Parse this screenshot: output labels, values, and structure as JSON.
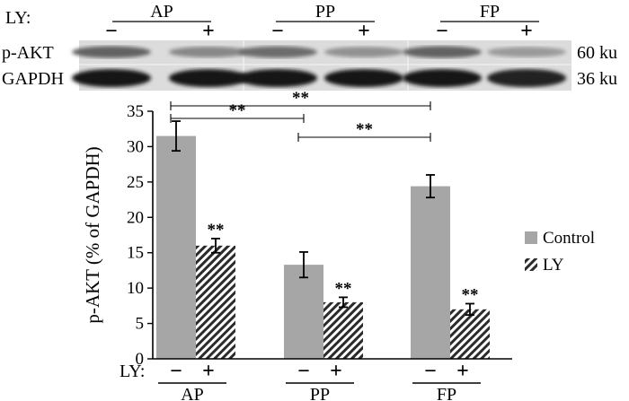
{
  "blot": {
    "row_label": "LY:",
    "groups": [
      "AP",
      "PP",
      "FP"
    ],
    "signs": [
      "−",
      "+",
      "−",
      "+",
      "−",
      "+"
    ],
    "bands": [
      {
        "name": "p-AKT",
        "size": "60 ku",
        "intensity": [
          0.55,
          0.35,
          0.5,
          0.3,
          0.55,
          0.25
        ]
      },
      {
        "name": "GAPDH",
        "size": "36 ku",
        "intensity": [
          0.95,
          0.95,
          0.95,
          0.95,
          0.95,
          0.9
        ]
      }
    ]
  },
  "chart_data": {
    "type": "bar",
    "title": "",
    "xlabel": "",
    "ylabel": "p-AKT (% of GAPDH)",
    "ylim": [
      0,
      35
    ],
    "yticks": [
      0,
      5,
      10,
      15,
      20,
      25,
      30,
      35
    ],
    "categories": [
      "AP",
      "PP",
      "FP"
    ],
    "x_row_label": "LY:",
    "x_signs": [
      "−",
      "+"
    ],
    "series": [
      {
        "name": "Control",
        "values": [
          31.5,
          13.3,
          24.4
        ],
        "errors": [
          2.1,
          1.8,
          1.6
        ],
        "color": "#a6a6a6",
        "pattern": "solid"
      },
      {
        "name": "LY",
        "values": [
          16.0,
          8.0,
          7.0
        ],
        "errors": [
          1.0,
          0.7,
          0.8
        ],
        "color": "#333333",
        "pattern": "hatched"
      }
    ],
    "bar_annotations": [
      "**",
      "**",
      "**"
    ],
    "brackets": [
      {
        "from": "AP",
        "to": "FP",
        "label": "**"
      },
      {
        "from": "AP",
        "to": "PP",
        "label": "**"
      },
      {
        "from": "PP",
        "to": "FP",
        "label": "**"
      }
    ],
    "legend": {
      "position": "right",
      "entries": [
        "Control",
        "LY"
      ]
    },
    "grid": false
  }
}
